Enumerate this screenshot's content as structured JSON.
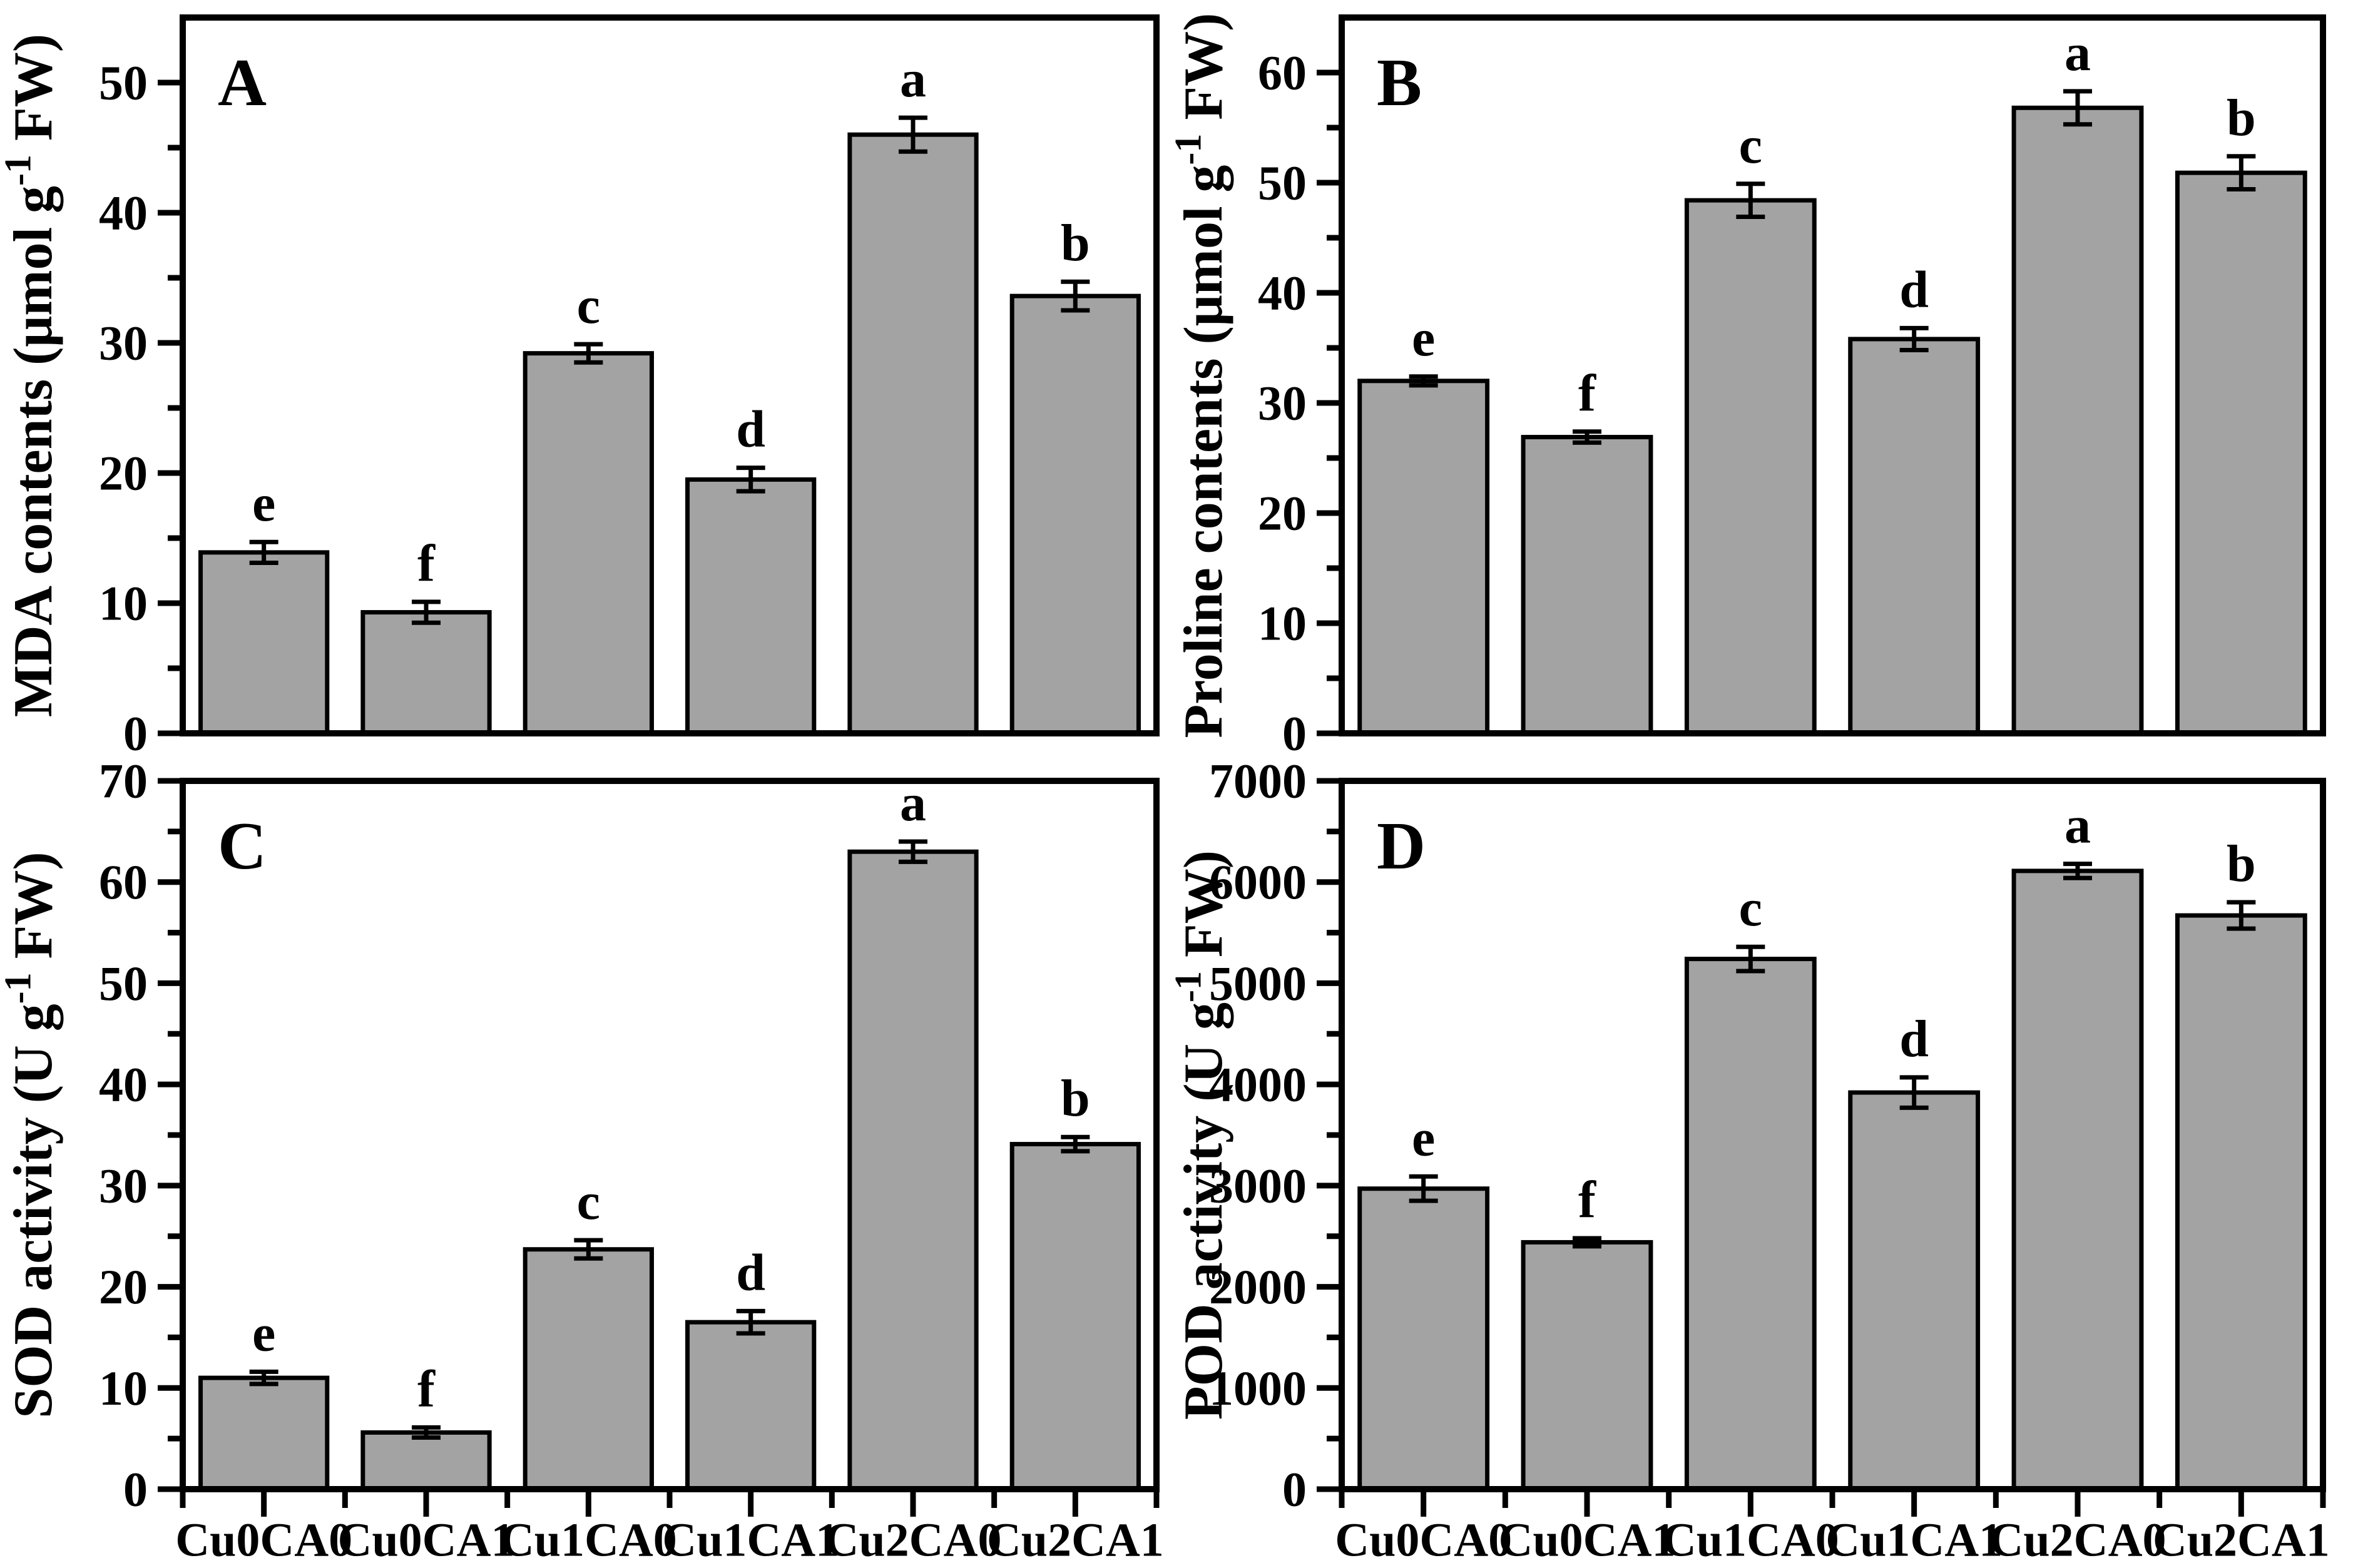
{
  "figure": {
    "background": "#ffffff",
    "bar_fill": "#a3a3a3",
    "bar_stroke": "#000000",
    "axis_color": "#000000",
    "categories": [
      "Cu0CA0",
      "Cu0CA1",
      "Cu1CA0",
      "Cu1CA1",
      "Cu2CA0",
      "Cu2CA1"
    ]
  },
  "chart_data": [
    {
      "type": "bar",
      "panel_label": "A",
      "ylabel": "MDA contents (μmol g⁻¹ FW)",
      "ylabel_parts": {
        "prefix": "MDA contents (μmol g",
        "sup": "-1",
        "suffix": " FW)"
      },
      "categories": [
        "Cu0CA0",
        "Cu0CA1",
        "Cu1CA0",
        "Cu1CA1",
        "Cu2CA0",
        "Cu2CA1"
      ],
      "values": [
        13.9,
        9.3,
        29.2,
        19.5,
        46.0,
        33.6
      ],
      "errors": [
        0.8,
        0.8,
        0.7,
        0.9,
        1.3,
        1.1
      ],
      "letters": [
        "e",
        "f",
        "c",
        "d",
        "a",
        "b"
      ],
      "ylim": [
        0,
        55
      ],
      "yticks": [
        0,
        10,
        20,
        30,
        40,
        50
      ],
      "ytick_minor": 5,
      "grid": "off",
      "legend": "none"
    },
    {
      "type": "bar",
      "panel_label": "B",
      "ylabel": "Proline contents (μmol g⁻¹ FW)",
      "ylabel_parts": {
        "prefix": "Proline contents (μmol g",
        "sup": "-1",
        "suffix": " FW)"
      },
      "categories": [
        "Cu0CA0",
        "Cu0CA1",
        "Cu1CA0",
        "Cu1CA1",
        "Cu2CA0",
        "Cu2CA1"
      ],
      "values": [
        32.0,
        26.9,
        48.4,
        35.8,
        56.8,
        50.9
      ],
      "errors": [
        0.4,
        0.5,
        1.5,
        1.0,
        1.5,
        1.5
      ],
      "letters": [
        "e",
        "f",
        "c",
        "d",
        "a",
        "b"
      ],
      "ylim": [
        0,
        65
      ],
      "yticks": [
        0,
        10,
        20,
        30,
        40,
        50,
        60
      ],
      "ytick_minor": 5,
      "grid": "off",
      "legend": "none"
    },
    {
      "type": "bar",
      "panel_label": "C",
      "ylabel": "SOD activity (U g⁻¹ FW)",
      "ylabel_parts": {
        "prefix": "SOD activity (U g",
        "sup": "-1",
        "suffix": " FW)"
      },
      "categories": [
        "Cu0CA0",
        "Cu0CA1",
        "Cu1CA0",
        "Cu1CA1",
        "Cu2CA0",
        "Cu2CA1"
      ],
      "values": [
        11.0,
        5.6,
        23.7,
        16.5,
        63.0,
        34.1
      ],
      "errors": [
        0.6,
        0.5,
        0.9,
        1.1,
        1.0,
        0.7
      ],
      "letters": [
        "e",
        "f",
        "c",
        "d",
        "a",
        "b"
      ],
      "ylim": [
        0,
        70
      ],
      "yticks": [
        0,
        10,
        20,
        30,
        40,
        50,
        60,
        70
      ],
      "ytick_minor": 5,
      "grid": "off",
      "legend": "none"
    },
    {
      "type": "bar",
      "panel_label": "D",
      "ylabel": "POD activity (U g⁻¹ FW)",
      "ylabel_parts": {
        "prefix": "POD activity (U g",
        "sup": "-1",
        "suffix": " FW)"
      },
      "categories": [
        "Cu0CA0",
        "Cu0CA1",
        "Cu1CA0",
        "Cu1CA1",
        "Cu2CA0",
        "Cu2CA1"
      ],
      "values": [
        2970,
        2440,
        5240,
        3920,
        6110,
        5670
      ],
      "errors": [
        120,
        40,
        120,
        150,
        70,
        130
      ],
      "letters": [
        "e",
        "f",
        "c",
        "d",
        "a",
        "b"
      ],
      "ylim": [
        0,
        7000
      ],
      "yticks": [
        0,
        1000,
        2000,
        3000,
        4000,
        5000,
        6000,
        7000
      ],
      "ytick_minor": 500,
      "grid": "off",
      "legend": "none"
    }
  ]
}
